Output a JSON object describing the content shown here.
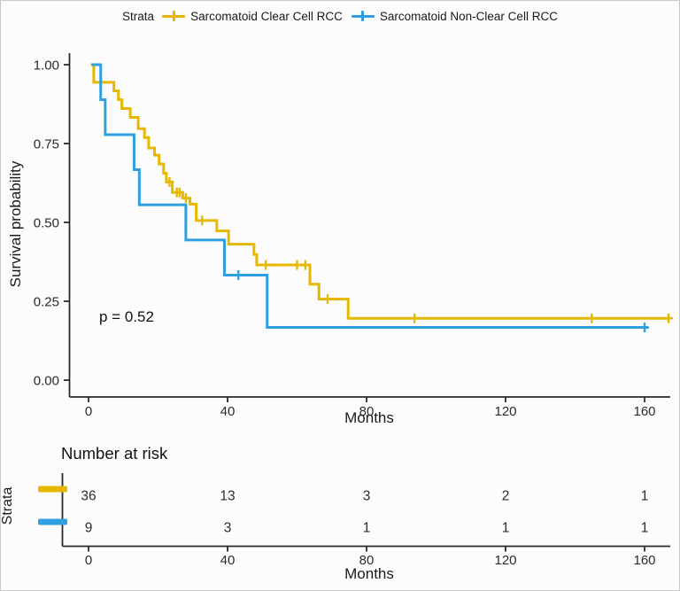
{
  "legend": {
    "title": "Strata",
    "items": [
      {
        "label": "Sarcomatoid Clear Cell RCC",
        "color": "#E7B800"
      },
      {
        "label": "Sarcomatoid Non-Clear Cell RCC",
        "color": "#2E9FDF"
      }
    ]
  },
  "pvalue_text": "p = 0.52",
  "chart_data": {
    "type": "line",
    "subtype": "kaplan-meier-step",
    "xlabel": "Months",
    "ylabel": "Survival probability",
    "xlim": [
      0,
      170
    ],
    "ylim": [
      0.0,
      1.0
    ],
    "grid": false,
    "legend_position": "top",
    "xticks": [
      0,
      40,
      80,
      120,
      160
    ],
    "yticks": [
      0.0,
      0.25,
      0.5,
      0.75,
      1.0
    ],
    "ytick_labels": [
      "0.00",
      "0.25",
      "0.50",
      "0.75",
      "1.00"
    ],
    "annotation": "p = 0.52",
    "series": [
      {
        "name": "Sarcomatoid Clear Cell RCC",
        "color": "#E7B800",
        "steps": [
          [
            0.7,
            1.0
          ],
          [
            1.5,
            0.944
          ],
          [
            7.3,
            0.917
          ],
          [
            8.6,
            0.889
          ],
          [
            9.6,
            0.861
          ],
          [
            12.0,
            0.833
          ],
          [
            14.3,
            0.797
          ],
          [
            16.1,
            0.769
          ],
          [
            17.3,
            0.736
          ],
          [
            19.0,
            0.713
          ],
          [
            20.3,
            0.685
          ],
          [
            21.6,
            0.656
          ],
          [
            22.4,
            0.628
          ],
          [
            24.1,
            0.595
          ],
          [
            27.1,
            0.577
          ],
          [
            29.2,
            0.558
          ],
          [
            31.0,
            0.506
          ],
          [
            36.9,
            0.473
          ],
          [
            40.3,
            0.431
          ],
          [
            47.6,
            0.398
          ],
          [
            48.4,
            0.365
          ],
          [
            63.7,
            0.304
          ],
          [
            66.3,
            0.257
          ],
          [
            74.7,
            0.196
          ],
          [
            167.4,
            0.196
          ]
        ],
        "censors": [
          [
            23.3,
            0.628
          ],
          [
            25.4,
            0.595
          ],
          [
            26.2,
            0.595
          ],
          [
            28.0,
            0.577
          ],
          [
            32.7,
            0.506
          ],
          [
            51.0,
            0.365
          ],
          [
            60.0,
            0.365
          ],
          [
            62.4,
            0.365
          ],
          [
            68.8,
            0.257
          ],
          [
            93.8,
            0.196
          ],
          [
            144.8,
            0.196
          ],
          [
            166.9,
            0.196
          ]
        ]
      },
      {
        "name": "Sarcomatoid Non-Clear Cell RCC",
        "color": "#2E9FDF",
        "steps": [
          [
            0.8,
            1.0
          ],
          [
            3.5,
            0.889
          ],
          [
            4.8,
            0.778
          ],
          [
            13.1,
            0.667
          ],
          [
            14.6,
            0.556
          ],
          [
            28.0,
            0.444
          ],
          [
            39.1,
            0.333
          ],
          [
            51.4,
            0.167
          ],
          [
            160.9,
            0.167
          ]
        ],
        "censors": [
          [
            43.1,
            0.333
          ],
          [
            160.0,
            0.167
          ]
        ]
      }
    ],
    "risk_table": {
      "title": "Number at risk",
      "ylabel": "Strata",
      "xlabel": "Months",
      "xticks": [
        0,
        40,
        80,
        120,
        160
      ],
      "rows": [
        {
          "name": "Sarcomatoid Clear Cell RCC",
          "color": "#E7B800",
          "counts": [
            "36",
            "13",
            "3",
            "2",
            "1"
          ]
        },
        {
          "name": "Sarcomatoid Non-Clear Cell RCC",
          "color": "#2E9FDF",
          "counts": [
            "9",
            "3",
            "1",
            "1",
            "1"
          ]
        }
      ]
    }
  }
}
